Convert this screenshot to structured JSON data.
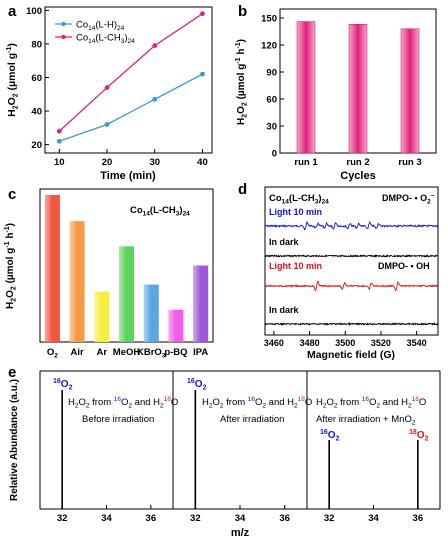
{
  "colors": {
    "blue": "#3a9ad9",
    "magenta": "#e0217a",
    "esr_blue": "#1414e0",
    "esr_red": "#e01414",
    "label_blue": "#1414e0",
    "label_red": "#e01414"
  },
  "panels": {
    "a": {
      "letter": "a",
      "xlabel": "Time (min)",
      "ylabel_main": "H",
      "ylabel_sub1": "2",
      "ylabel_mid": "O",
      "ylabel_sub2": "2",
      "ylabel_unit": " (µmol g",
      "ylabel_sup": "-1",
      "ylabel_end": ")"
    },
    "b": {
      "letter": "b",
      "xlabel": "Cycles",
      "ylabel_main": "H",
      "ylabel_sub1": "2",
      "ylabel_mid": "O",
      "ylabel_sub2": "2",
      "ylabel_unit": " (µmol g",
      "ylabel_sup1": "-1",
      "ylabel_h": " h",
      "ylabel_sup2": "-1",
      "ylabel_end": ")"
    },
    "c": {
      "letter": "c",
      "label_main": "Co",
      "label_sub1": "14",
      "label_mid": "(L-CH",
      "label_sub2": "3",
      "label_end": ")",
      "label_sub3": "24",
      "ylabel_main": "H",
      "ylabel_sub1": "2",
      "ylabel_mid": "O",
      "ylabel_sub2": "2",
      "ylabel_unit": " (µmol g",
      "ylabel_sup1": "-1",
      "ylabel_h": " h",
      "ylabel_sup2": "-1",
      "ylabel_end": ")"
    },
    "d": {
      "letter": "d",
      "sample_main": "Co",
      "sample_sub1": "14",
      "sample_mid": "(L-CH",
      "sample_sub2": "3",
      "sample_end": ")",
      "sample_sub3": "24",
      "dmpo_o2": "DMPO- • O",
      "dmpo_o2_sub": "2",
      "dmpo_o2_sup": "−",
      "dmpo_oh": "DMPO- • OH",
      "light_top": "Light 10 min",
      "dark_top": "In dark",
      "light_bottom": "Light 10 min",
      "dark_bottom": "In dark",
      "xlabel": "Magnetic field (G)",
      "xticks": [
        "3460",
        "3480",
        "3500",
        "3520",
        "3540"
      ]
    },
    "e": {
      "letter": "e",
      "ylabel": "Relative Abundance (a.u.)",
      "xlabel": "m/z",
      "peak16": "16",
      "peak16_o": "O",
      "peak16_sub": "2",
      "peak18": "18",
      "peak18_o": "O",
      "peak18_sub": "2",
      "desc_a": "H",
      "desc_b": "2",
      "desc_c": "O",
      "desc_d": "2",
      "desc_e": " from ",
      "desc_f": "16",
      "desc_g": "O",
      "desc_h": "2",
      "desc_i": " and H",
      "desc_j": "2",
      "desc_k": "18",
      "desc_l": "O",
      "cond1": "Before irradiation",
      "cond2": "After irradiation",
      "cond3a": "After irradiation + MnO",
      "cond3b": "2",
      "xticks": [
        "32",
        "34",
        "36"
      ]
    }
  },
  "chart_data": [
    {
      "panel": "a",
      "type": "line",
      "x": [
        10,
        20,
        30,
        40
      ],
      "xlim": [
        7,
        42
      ],
      "xticks": [
        10,
        20,
        30,
        40
      ],
      "ylim": [
        15,
        102
      ],
      "yticks": [
        20,
        40,
        60,
        80,
        100
      ],
      "xlabel": "Time (min)",
      "legend_position": "top-left",
      "series": [
        {
          "name_main": "Co",
          "name_sub1": "14",
          "name_end": "(L-H)",
          "name_sub2": "24",
          "color": "#3a9ad9",
          "values": [
            22,
            32,
            47,
            62
          ]
        },
        {
          "name_main": "Co",
          "name_sub1": "14",
          "name_end": "(L-CH",
          "name_sub2": "3",
          "name_end2": ")",
          "name_sub3": "24",
          "color": "#e0217a",
          "values": [
            28,
            54,
            79,
            98
          ]
        }
      ]
    },
    {
      "panel": "b",
      "type": "bar",
      "categories": [
        "run 1",
        "run 2",
        "run 3"
      ],
      "values": [
        146,
        143,
        138
      ],
      "ylim": [
        0,
        160
      ],
      "yticks": [
        0,
        30,
        60,
        90,
        120,
        150
      ],
      "xlabel": "Cycles",
      "color": "#e0217a"
    },
    {
      "panel": "c",
      "type": "bar",
      "categories": [
        {
          "main": "O",
          "sub": "2"
        },
        {
          "main": "Air",
          "sub": ""
        },
        {
          "main": "Ar",
          "sub": ""
        },
        {
          "main": "MeOH",
          "sub": ""
        },
        {
          "main": "KBrO",
          "sub": "3"
        },
        {
          "main": "p-BQ",
          "sub": ""
        },
        {
          "main": "IPA",
          "sub": ""
        }
      ],
      "values": [
        146,
        120,
        50,
        95,
        57,
        32,
        76
      ],
      "colors": [
        "#f0583f",
        "#f59a47",
        "#f5ee3c",
        "#5fd35c",
        "#5aa7e0",
        "#f05ee8",
        "#9e5ad8"
      ],
      "ylim": [
        0,
        150
      ]
    },
    {
      "panel": "d",
      "type": "line",
      "xlim": [
        3455,
        3552
      ],
      "xticks": [
        3460,
        3480,
        3500,
        3520,
        3540
      ],
      "xlabel": "Magnetic field (G)",
      "superoxide_peaks": [
        3478,
        3484,
        3489,
        3494,
        3502,
        3507,
        3513,
        3518
      ],
      "hydroxyl_peaks": [
        3484,
        3499,
        3514,
        3529
      ]
    },
    {
      "panel": "e",
      "type": "bar",
      "xlim": [
        31,
        37
      ],
      "xticks": [
        32,
        34,
        36
      ],
      "xlabel": "m/z",
      "ylabel": "Relative Abundance (a.u.)",
      "subplots": [
        {
          "condition": "Before irradiation",
          "peaks": [
            {
              "mz": 32,
              "height": 1.0
            }
          ]
        },
        {
          "condition": "After irradiation",
          "peaks": [
            {
              "mz": 32,
              "height": 1.0
            }
          ]
        },
        {
          "condition": "After irradiation + MnO2",
          "peaks": [
            {
              "mz": 32,
              "height": 0.5
            },
            {
              "mz": 36,
              "height": 0.5
            }
          ]
        }
      ]
    }
  ]
}
